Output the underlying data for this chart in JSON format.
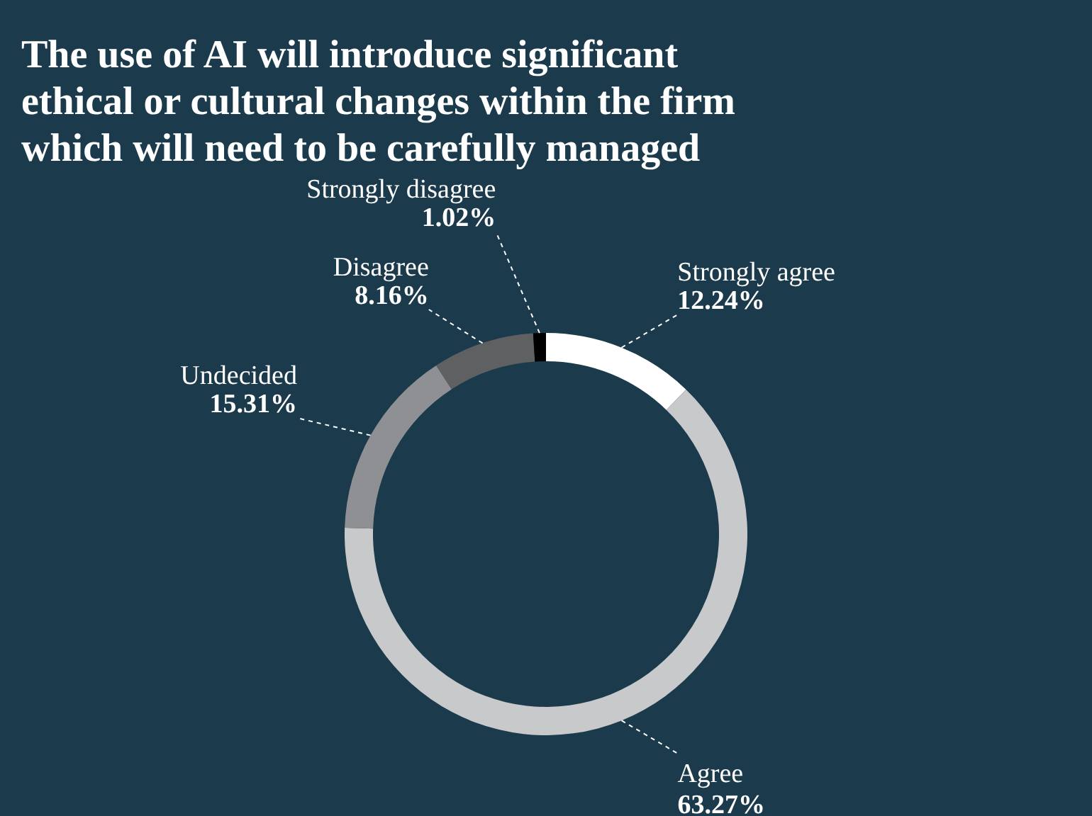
{
  "chart_data": {
    "type": "donut",
    "title": [
      "The use of AI will introduce significant",
      "ethical or cultural changes within the firm",
      "which will need to be carefully managed"
    ],
    "categories": [
      "Strongly agree",
      "Agree",
      "Undecided",
      "Disagree",
      "Strongly disagree"
    ],
    "values": [
      12.24,
      63.27,
      15.31,
      8.16,
      1.02
    ],
    "value_labels": [
      "12.24%",
      "63.27%",
      "15.31%",
      "8.16%",
      "1.02%"
    ],
    "colors": [
      "#ffffff",
      "#c8c9cb",
      "#8e9094",
      "#5f6062",
      "#000000"
    ],
    "legend": false
  }
}
